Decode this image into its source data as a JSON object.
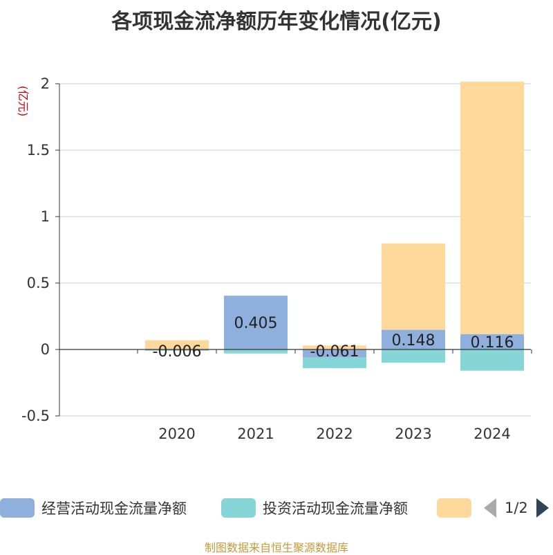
{
  "title": "各项现金流净额历年变化情况(亿元)",
  "source": "制图数据来自恒生聚源数据库",
  "legend": {
    "items": [
      {
        "label": "经营活动现金流量净额",
        "color": "#8fb0dc"
      },
      {
        "label": "投资活动现金流量净额",
        "color": "#86d6d8"
      },
      {
        "label": "",
        "color": "#fed99b"
      }
    ],
    "pager": "1/2"
  },
  "chart_data": {
    "type": "bar",
    "stacked": true,
    "categories": [
      "2020",
      "2021",
      "2022",
      "2023",
      "2024"
    ],
    "ylabel": "(亿元)",
    "ylim": [
      -0.5,
      2
    ],
    "yticks": [
      "-0.5",
      "0",
      "0.5",
      "1",
      "1.5",
      "2"
    ],
    "grid": true,
    "legend_position": "bottom",
    "series": [
      {
        "name": "经营活动现金流量净额",
        "color": "#8fb0dc",
        "values": [
          -0.006,
          0.405,
          -0.061,
          0.148,
          0.116
        ],
        "labels": [
          "-0.006",
          "0.405",
          "-0.061",
          "0.148",
          "0.116"
        ]
      },
      {
        "name": "投资活动现金流量净额",
        "color": "#86d6d8",
        "values": [
          -0.004,
          -0.03,
          -0.08,
          -0.1,
          -0.16
        ]
      },
      {
        "color": "#fed99b",
        "values": [
          0.07,
          0,
          0.03,
          0.65,
          1.9
        ]
      }
    ]
  }
}
